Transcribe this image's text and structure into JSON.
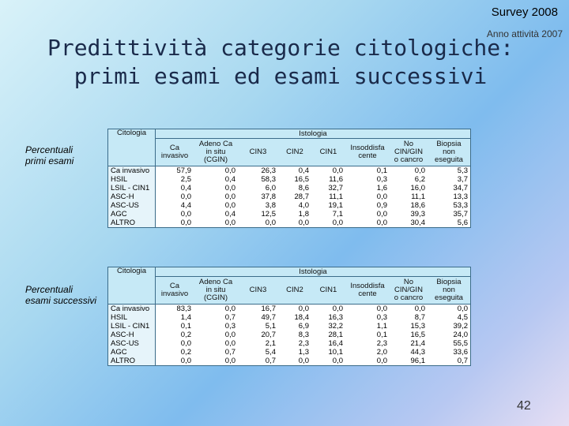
{
  "header": {
    "survey": "Survey 2008",
    "anno": "Anno attività 2007",
    "title_line1": "Predittività categorie citologiche:",
    "title_line2": "primi esami ed esami successivi"
  },
  "labels": {
    "first_line1": "Percentuali",
    "first_line2": "primi esami",
    "second_line1": "Percentuali",
    "second_line2": "esami successivi"
  },
  "table_headers": {
    "citologia": "Citologia",
    "istologia": "Istologia",
    "columns": [
      "Ca invasivo",
      "Adeno Ca in situ (CGIN)",
      "CIN3",
      "CIN2",
      "CIN1",
      "Insoddisfa cente",
      "No CIN/GIN o cancro",
      "Biopsia non eseguita"
    ]
  },
  "table_first": {
    "rows": [
      {
        "label": "Ca invasivo",
        "values": [
          "57,9",
          "0,0",
          "26,3",
          "0,4",
          "0,0",
          "0,1",
          "0,0",
          "5,3"
        ]
      },
      {
        "label": "HSIL",
        "values": [
          "2,5",
          "0,4",
          "58,3",
          "16,5",
          "11,6",
          "0,3",
          "6,2",
          "3,7"
        ]
      },
      {
        "label": "LSIL - CIN1",
        "values": [
          "0,4",
          "0,0",
          "6,0",
          "8,6",
          "32,7",
          "1,6",
          "16,0",
          "34,7"
        ]
      },
      {
        "label": "ASC-H",
        "values": [
          "0,0",
          "0,0",
          "37,8",
          "28,7",
          "11,1",
          "0,0",
          "11,1",
          "13,3"
        ]
      },
      {
        "label": "ASC-US",
        "values": [
          "4,4",
          "0,0",
          "3,8",
          "4,0",
          "19,1",
          "0,9",
          "18,6",
          "53,3"
        ]
      },
      {
        "label": "AGC",
        "values": [
          "0,0",
          "0,4",
          "12,5",
          "1,8",
          "7,1",
          "0,0",
          "39,3",
          "35,7"
        ]
      },
      {
        "label": "ALTRO",
        "values": [
          "0,0",
          "0,0",
          "0,0",
          "0,0",
          "0,0",
          "0,0",
          "30,4",
          "5,6"
        ]
      }
    ]
  },
  "table_second": {
    "rows": [
      {
        "label": "Ca invasivo",
        "values": [
          "83,3",
          "0,0",
          "16,7",
          "0,0",
          "0,0",
          "0,0",
          "0,0",
          "0,0"
        ]
      },
      {
        "label": "HSIL",
        "values": [
          "1,4",
          "0,7",
          "49,7",
          "18,4",
          "16,3",
          "0,3",
          "8,7",
          "4,5"
        ]
      },
      {
        "label": "LSIL - CIN1",
        "values": [
          "0,1",
          "0,3",
          "5,1",
          "6,9",
          "32,2",
          "1,1",
          "15,3",
          "39,2"
        ]
      },
      {
        "label": "ASC-H",
        "values": [
          "0,2",
          "0,0",
          "20,7",
          "8,3",
          "28,1",
          "0,1",
          "16,5",
          "24,0"
        ]
      },
      {
        "label": "ASC-US",
        "values": [
          "0,0",
          "0,0",
          "2,1",
          "2,3",
          "16,4",
          "2,3",
          "21,4",
          "55,5"
        ]
      },
      {
        "label": "AGC",
        "values": [
          "0,2",
          "0,7",
          "5,4",
          "1,3",
          "10,1",
          "2,0",
          "44,3",
          "33,6"
        ]
      },
      {
        "label": "ALTRO",
        "values": [
          "0,0",
          "0,0",
          "0,7",
          "0,0",
          "0,0",
          "0,0",
          "96,1",
          "0,7"
        ]
      }
    ]
  },
  "footer": {
    "page_number": "42"
  }
}
